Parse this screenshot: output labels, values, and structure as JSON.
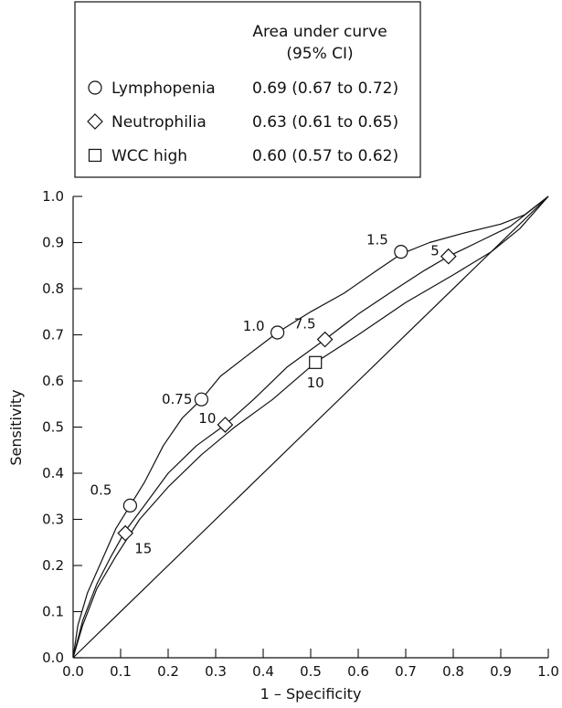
{
  "chart_data": {
    "type": "line",
    "xlabel": "1 – Specificity",
    "ylabel": "Sensitivity",
    "xlim": [
      0,
      1
    ],
    "ylim": [
      0,
      1
    ],
    "x_ticks": [
      "0.0",
      "0.1",
      "0.2",
      "0.3",
      "0.4",
      "0.5",
      "0.6",
      "0.7",
      "0.8",
      "0.9",
      "1.0"
    ],
    "y_ticks": [
      "0.0",
      "0.1",
      "0.2",
      "0.3",
      "0.4",
      "0.5",
      "0.6",
      "0.7",
      "0.8",
      "0.9",
      "1.0"
    ],
    "grid": false,
    "legend_position": "top-left, above plot",
    "legend_header": [
      "Area under curve",
      "(95% CI)"
    ],
    "series": [
      {
        "name": "Lymphopenia",
        "auc": "0.69 (0.67 to 0.72)",
        "marker": "circle",
        "points": [
          [
            0,
            0
          ],
          [
            0.01,
            0.07
          ],
          [
            0.03,
            0.14
          ],
          [
            0.06,
            0.21
          ],
          [
            0.09,
            0.28
          ],
          [
            0.12,
            0.33
          ],
          [
            0.15,
            0.38
          ],
          [
            0.19,
            0.46
          ],
          [
            0.23,
            0.52
          ],
          [
            0.27,
            0.56
          ],
          [
            0.31,
            0.61
          ],
          [
            0.36,
            0.65
          ],
          [
            0.43,
            0.705
          ],
          [
            0.5,
            0.75
          ],
          [
            0.57,
            0.79
          ],
          [
            0.64,
            0.84
          ],
          [
            0.69,
            0.875
          ],
          [
            0.75,
            0.9
          ],
          [
            0.82,
            0.92
          ],
          [
            0.9,
            0.94
          ],
          [
            0.95,
            0.96
          ],
          [
            1.0,
            1.0
          ]
        ],
        "markers": [
          {
            "x": 0.12,
            "y": 0.33,
            "label": "0.5"
          },
          {
            "x": 0.27,
            "y": 0.56,
            "label": "0.75"
          },
          {
            "x": 0.43,
            "y": 0.705,
            "label": "1.0"
          },
          {
            "x": 0.69,
            "y": 0.88,
            "label": "1.5"
          }
        ]
      },
      {
        "name": "Neutrophilia",
        "auc": "0.63 (0.61 to 0.65)",
        "marker": "diamond",
        "points": [
          [
            0,
            0
          ],
          [
            0.02,
            0.08
          ],
          [
            0.05,
            0.16
          ],
          [
            0.08,
            0.22
          ],
          [
            0.11,
            0.275
          ],
          [
            0.15,
            0.33
          ],
          [
            0.2,
            0.4
          ],
          [
            0.26,
            0.46
          ],
          [
            0.32,
            0.505
          ],
          [
            0.38,
            0.56
          ],
          [
            0.45,
            0.63
          ],
          [
            0.53,
            0.69
          ],
          [
            0.6,
            0.745
          ],
          [
            0.68,
            0.8
          ],
          [
            0.74,
            0.84
          ],
          [
            0.79,
            0.87
          ],
          [
            0.85,
            0.9
          ],
          [
            0.92,
            0.935
          ],
          [
            1.0,
            1.0
          ]
        ],
        "markers": [
          {
            "x": 0.11,
            "y": 0.27,
            "label": "15"
          },
          {
            "x": 0.32,
            "y": 0.505,
            "label": "10"
          },
          {
            "x": 0.53,
            "y": 0.69,
            "label": "7.5"
          },
          {
            "x": 0.79,
            "y": 0.87,
            "label": "5"
          }
        ]
      },
      {
        "name": "WCC high",
        "auc": "0.60 (0.57 to 0.62)",
        "marker": "square",
        "points": [
          [
            0,
            0
          ],
          [
            0.02,
            0.07
          ],
          [
            0.05,
            0.15
          ],
          [
            0.09,
            0.22
          ],
          [
            0.14,
            0.3
          ],
          [
            0.2,
            0.37
          ],
          [
            0.27,
            0.44
          ],
          [
            0.34,
            0.5
          ],
          [
            0.42,
            0.56
          ],
          [
            0.51,
            0.64
          ],
          [
            0.6,
            0.7
          ],
          [
            0.7,
            0.77
          ],
          [
            0.8,
            0.83
          ],
          [
            0.88,
            0.88
          ],
          [
            0.94,
            0.93
          ],
          [
            1.0,
            1.0
          ]
        ],
        "markers": [
          {
            "x": 0.51,
            "y": 0.64,
            "label": "10"
          }
        ]
      },
      {
        "name": "",
        "marker": "none",
        "points": [
          [
            0,
            0
          ],
          [
            1,
            1
          ]
        ]
      }
    ]
  }
}
